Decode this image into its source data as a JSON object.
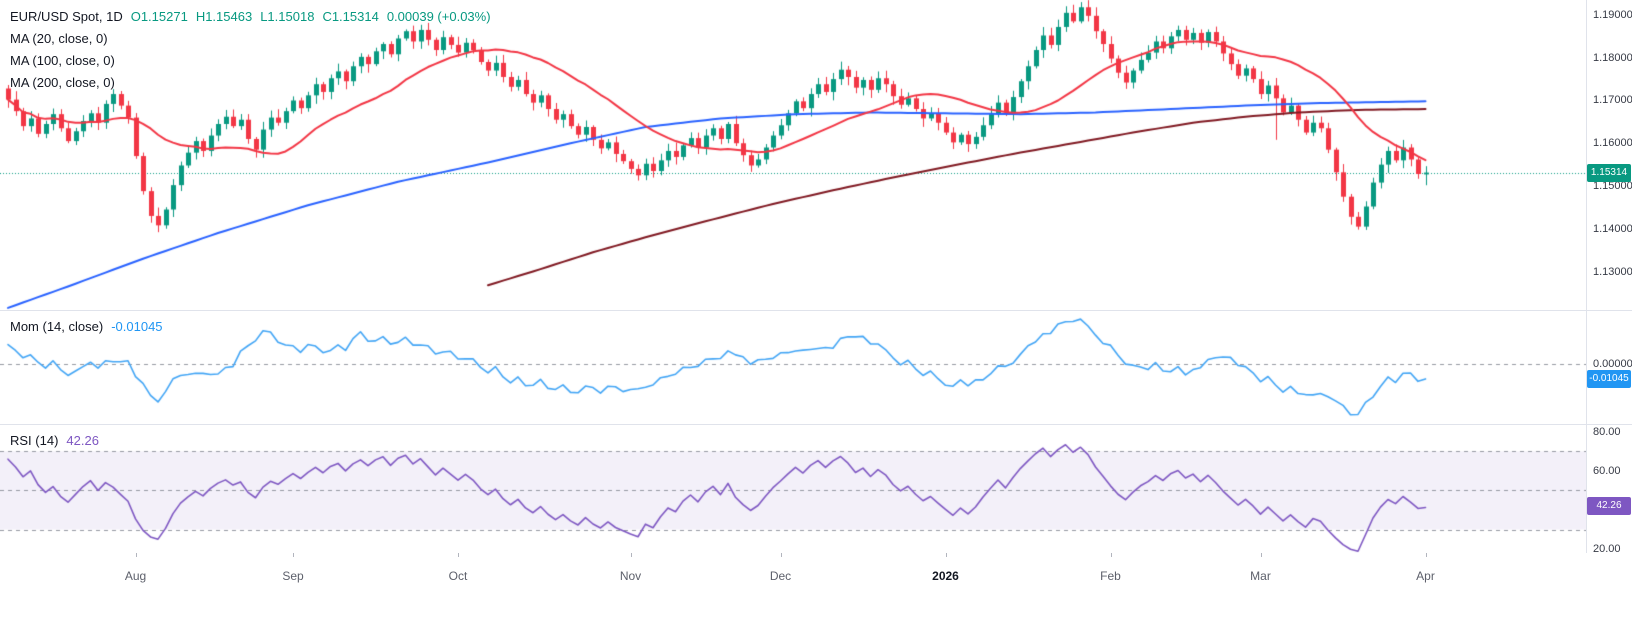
{
  "legend": {
    "symbol": "EUR/USD Spot, 1D",
    "open": "O1.15271",
    "high": "H1.15463",
    "low": "L1.15018",
    "close": "C1.15314",
    "change": "0.00039 (+0.03%)",
    "ma20": "MA (20, close, 0)",
    "ma100": "MA (100, close, 0)",
    "ma200": "MA (200, close, 0)",
    "mom_label": "Mom (14, close)",
    "mom_value": "-0.01045",
    "rsi_label": "RSI (14)",
    "rsi_value": "42.26"
  },
  "colors": {
    "up": "#089981",
    "down": "#f23645",
    "ma20": "#f23645",
    "ma100": "#2962ff",
    "ma200": "#801922",
    "mom": "#42a5f5",
    "mom_badge": "#2196f3",
    "rsi": "#7e57c2",
    "axis_text": "#363a45",
    "grid": "#e0e3eb"
  },
  "price_axis": {
    "ticks": [
      {
        "value": 1.19,
        "label": "1.19000"
      },
      {
        "value": 1.18,
        "label": "1.18000"
      },
      {
        "value": 1.17,
        "label": "1.17000"
      },
      {
        "value": 1.16,
        "label": "1.16000"
      },
      {
        "value": 1.15,
        "label": "1.15000"
      },
      {
        "value": 1.14,
        "label": "1.14000"
      },
      {
        "value": 1.13,
        "label": "1.13000"
      }
    ],
    "badge": {
      "value": 1.15314,
      "label": "1.15314"
    }
  },
  "mom_axis": {
    "ticks": [
      {
        "value": 0,
        "label": "0.00000"
      }
    ],
    "badge": {
      "value": -0.01045,
      "label": "-0.01045"
    }
  },
  "rsi_axis": {
    "ticks": [
      {
        "value": 80,
        "label": "80.00"
      },
      {
        "value": 60,
        "label": "60.00"
      },
      {
        "value": 20,
        "label": "20.00"
      }
    ],
    "badge": {
      "value": 42.26,
      "label": "42.26"
    }
  },
  "time_axis": {
    "ticks": [
      {
        "day": 17,
        "label": "Aug"
      },
      {
        "day": 38,
        "label": "Sep"
      },
      {
        "day": 60,
        "label": "Oct"
      },
      {
        "day": 83,
        "label": "Nov"
      },
      {
        "day": 103,
        "label": "Dec"
      },
      {
        "day": 125,
        "label": "2026",
        "bold": true
      },
      {
        "day": 147,
        "label": "Feb"
      },
      {
        "day": 167,
        "label": "Mar"
      },
      {
        "day": 189,
        "label": "Apr"
      }
    ]
  },
  "chart_data": {
    "type": "candlestick",
    "title": "EUR/USD Spot, 1D",
    "interval": "1D",
    "price_range": [
      1.121,
      1.1935
    ],
    "mom_range": [
      -0.041,
      0.0365
    ],
    "rsi_range": [
      18,
      84
    ],
    "rsi_bands": [
      30,
      50,
      70
    ],
    "current_price": 1.15314,
    "ohlc_today": {
      "open": 1.15271,
      "high": 1.15463,
      "low": 1.15018,
      "close": 1.15314,
      "change": 0.00039,
      "change_pct": 0.03
    },
    "first_open": 1.1728,
    "closes": [
      1.1702,
      1.1675,
      1.164,
      1.1658,
      1.1622,
      1.1645,
      1.1668,
      1.1635,
      1.1605,
      1.1628,
      1.1652,
      1.167,
      1.1648,
      1.1692,
      1.1715,
      1.1688,
      1.166,
      1.157,
      1.1488,
      1.143,
      1.1408,
      1.1445,
      1.1502,
      1.1548,
      1.1578,
      1.1605,
      1.1582,
      1.1618,
      1.1645,
      1.1662,
      1.164,
      1.1655,
      1.161,
      1.1585,
      1.1632,
      1.166,
      1.1648,
      1.1675,
      1.17,
      1.1682,
      1.1712,
      1.1738,
      1.172,
      1.1752,
      1.1768,
      1.1745,
      1.178,
      1.1802,
      1.1785,
      1.1815,
      1.1832,
      1.1808,
      1.1845,
      1.1862,
      1.1838,
      1.1865,
      1.1842,
      1.1818,
      1.1848,
      1.183,
      1.1812,
      1.1835,
      1.1818,
      1.179,
      1.177,
      1.1788,
      1.1755,
      1.1732,
      1.1748,
      1.1715,
      1.1695,
      1.1712,
      1.168,
      1.1655,
      1.1668,
      1.164,
      1.162,
      1.1638,
      1.1608,
      1.1588,
      1.1602,
      1.1575,
      1.1558,
      1.154,
      1.1525,
      1.1552,
      1.1535,
      1.156,
      1.1582,
      1.1568,
      1.1595,
      1.1612,
      1.159,
      1.1618,
      1.1635,
      1.161,
      1.1645,
      1.16,
      1.1572,
      1.1548,
      1.1562,
      1.159,
      1.1618,
      1.1642,
      1.167,
      1.1698,
      1.1682,
      1.1715,
      1.1738,
      1.172,
      1.175,
      1.1772,
      1.1755,
      1.173,
      1.1748,
      1.1725,
      1.1752,
      1.1738,
      1.171,
      1.169,
      1.1705,
      1.168,
      1.1658,
      1.167,
      1.1648,
      1.1625,
      1.1602,
      1.162,
      1.1598,
      1.1615,
      1.1642,
      1.1668,
      1.1695,
      1.1672,
      1.1708,
      1.1745,
      1.178,
      1.1818,
      1.1852,
      1.183,
      1.1872,
      1.1905,
      1.1885,
      1.1918,
      1.1898,
      1.1862,
      1.1832,
      1.1798,
      1.1765,
      1.1742,
      1.177,
      1.1795,
      1.1812,
      1.1838,
      1.1822,
      1.185,
      1.1865,
      1.1842,
      1.1858,
      1.1835,
      1.186,
      1.1838,
      1.181,
      1.1785,
      1.1758,
      1.1775,
      1.175,
      1.1715,
      1.1735,
      1.1705,
      1.1672,
      1.1688,
      1.1655,
      1.1625,
      1.1648,
      1.1635,
      1.1585,
      1.1532,
      1.1475,
      1.1428,
      1.1405,
      1.1452,
      1.1508,
      1.155,
      1.1582,
      1.156,
      1.159,
      1.1562,
      1.1528,
      1.15314
    ],
    "last_candle": {
      "open": 1.15271,
      "high": 1.15463,
      "low": 1.15018,
      "close": 1.15314
    },
    "wick_overrides": {
      "20": {
        "low": 1.1392
      },
      "143": {
        "high": 1.193
      },
      "169": {
        "low": 1.1608
      },
      "180": {
        "low": 1.1398
      }
    },
    "ma20_period": 20,
    "ma100_points": [
      [
        0,
        1.1215
      ],
      [
        8,
        1.1265
      ],
      [
        18,
        1.133
      ],
      [
        28,
        1.139
      ],
      [
        40,
        1.1455
      ],
      [
        52,
        1.151
      ],
      [
        64,
        1.1555
      ],
      [
        75,
        1.16
      ],
      [
        85,
        1.1638
      ],
      [
        95,
        1.1658
      ],
      [
        105,
        1.1668
      ],
      [
        115,
        1.1672
      ],
      [
        125,
        1.167
      ],
      [
        135,
        1.1668
      ],
      [
        145,
        1.1672
      ],
      [
        155,
        1.168
      ],
      [
        165,
        1.1688
      ],
      [
        175,
        1.1694
      ],
      [
        189,
        1.1698
      ]
    ],
    "ma200_points": [
      [
        64,
        1.1268
      ],
      [
        70,
        1.13
      ],
      [
        78,
        1.1345
      ],
      [
        86,
        1.1385
      ],
      [
        94,
        1.1422
      ],
      [
        102,
        1.1458
      ],
      [
        110,
        1.149
      ],
      [
        118,
        1.152
      ],
      [
        126,
        1.1548
      ],
      [
        134,
        1.1575
      ],
      [
        142,
        1.16
      ],
      [
        150,
        1.1625
      ],
      [
        158,
        1.1648
      ],
      [
        165,
        1.1662
      ],
      [
        172,
        1.1672
      ],
      [
        180,
        1.1678
      ],
      [
        189,
        1.168
      ]
    ],
    "mom_period": 14,
    "mom_last": -0.01045,
    "mom_pre": [
      0.013,
      0.009,
      0.004,
      0.006,
      0.001,
      -0.003,
      0.002,
      -0.004,
      -0.008,
      -0.005,
      -0.002,
      0.001,
      -0.003,
      0.002
    ],
    "rsi_period": 14,
    "rsi_last": 42.26,
    "rsi_pre": [
      66,
      62,
      57,
      60,
      53,
      49,
      52,
      47,
      44,
      48,
      52,
      55,
      50,
      54
    ]
  }
}
